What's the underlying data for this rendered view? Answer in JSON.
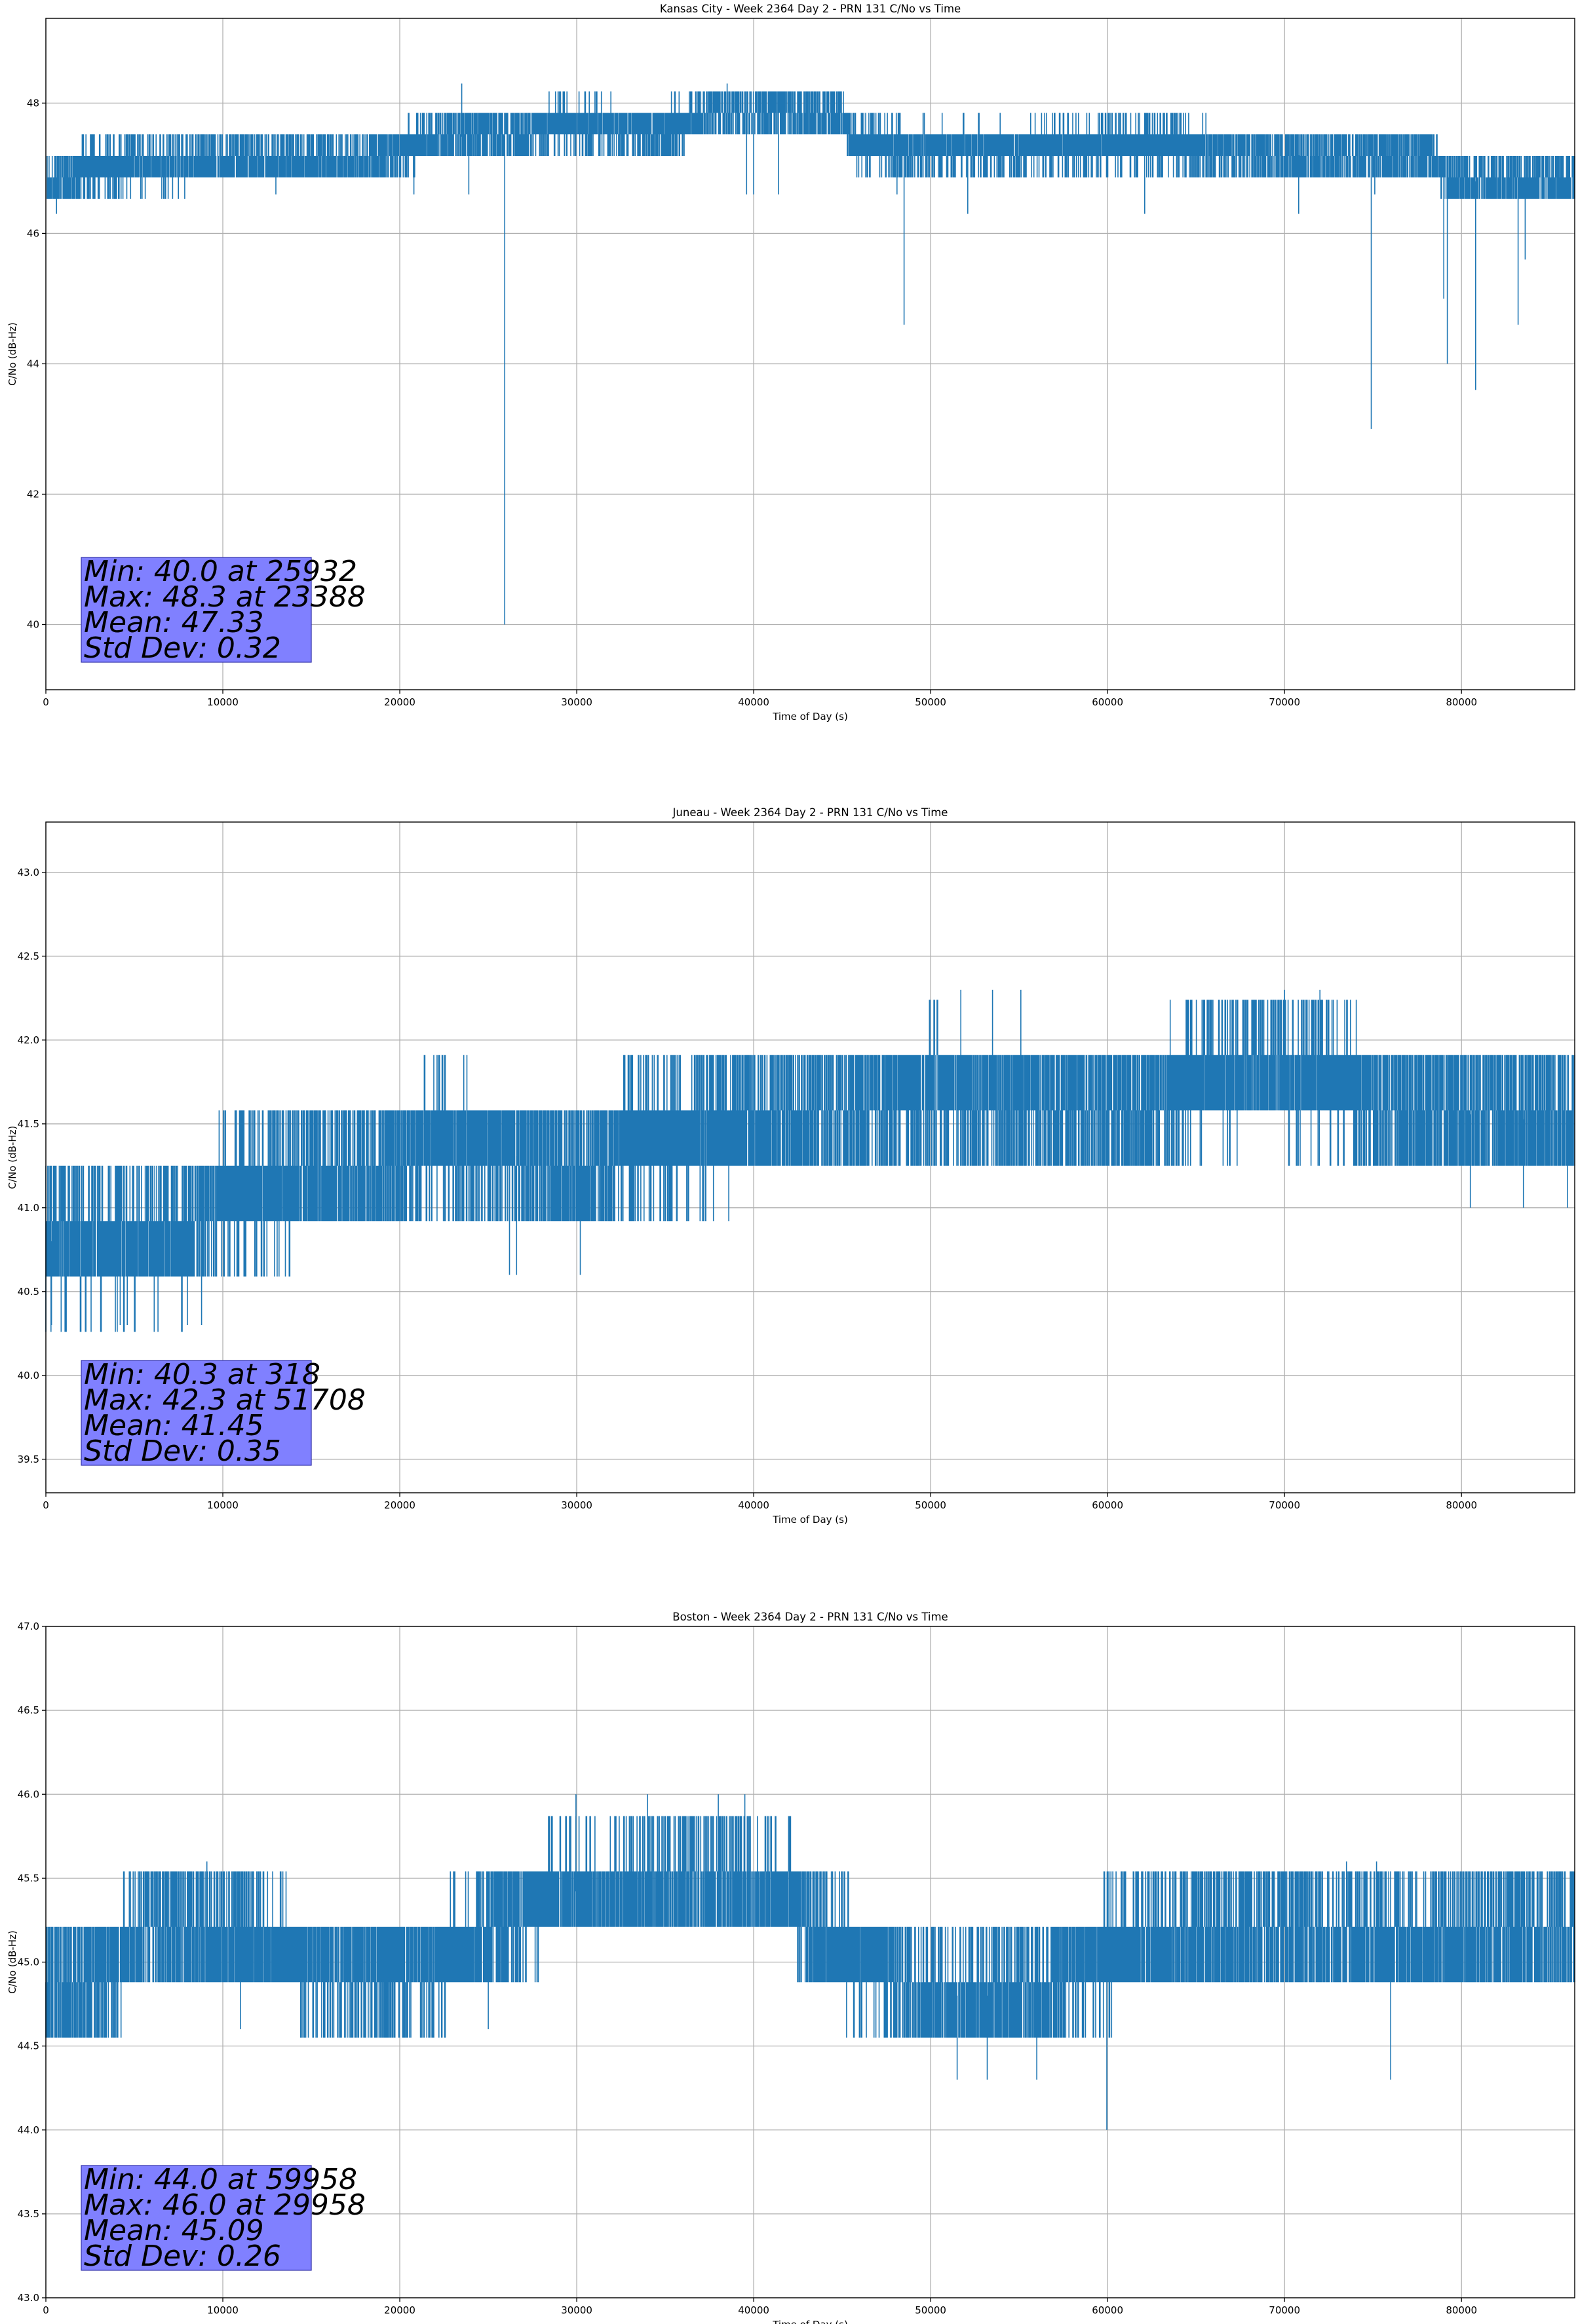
{
  "colors": {
    "series": "#1f77b4",
    "stats_box": "#8080ff",
    "stats_box_edge": "#3333aa",
    "grid": "#b0b0b0"
  },
  "chart_data": [
    {
      "type": "line",
      "title": "Kansas City - Week 2364 Day 2 - PRN 131 C/No vs Time",
      "xlabel": "Time of Day (s)",
      "ylabel": "C/No (dB-Hz)",
      "xlim": [
        0,
        86400
      ],
      "ylim": [
        39,
        49.3
      ],
      "xticks": [
        0,
        10000,
        20000,
        30000,
        40000,
        50000,
        60000,
        70000,
        80000
      ],
      "yticks": [
        40,
        42,
        44,
        46,
        48
      ],
      "ytick_labels": [
        "40",
        "42",
        "44",
        "46",
        "48"
      ],
      "grid": true,
      "series": [
        {
          "name": "C/No",
          "quantization": 0.33,
          "trend": [
            [
              0,
              46.8
            ],
            [
              1500,
              46.8
            ],
            [
              2000,
              47.0
            ],
            [
              9000,
              47.1
            ],
            [
              16000,
              47.1
            ],
            [
              19000,
              47.2
            ],
            [
              21000,
              47.4
            ],
            [
              24000,
              47.5
            ],
            [
              27000,
              47.5
            ],
            [
              29000,
              47.7
            ],
            [
              33000,
              47.6
            ],
            [
              35000,
              47.6
            ],
            [
              37000,
              47.8
            ],
            [
              40000,
              47.9
            ],
            [
              45000,
              47.8
            ],
            [
              45500,
              47.4
            ],
            [
              49000,
              47.3
            ],
            [
              55000,
              47.3
            ],
            [
              62000,
              47.4
            ],
            [
              66000,
              47.3
            ],
            [
              70000,
              47.2
            ],
            [
              78000,
              47.2
            ],
            [
              79500,
              46.8
            ],
            [
              86400,
              46.8
            ]
          ],
          "noise": 0.4,
          "dropouts": [
            [
              25932,
              40.0
            ],
            [
              48500,
              44.6
            ],
            [
              74900,
              43.0
            ],
            [
              79200,
              44.0
            ],
            [
              80800,
              43.6
            ],
            [
              83200,
              44.6
            ],
            [
              83600,
              45.6
            ],
            [
              23500,
              48.3
            ],
            [
              38500,
              48.3
            ],
            [
              13000,
              46.6
            ],
            [
              20800,
              46.6
            ],
            [
              23900,
              46.6
            ],
            [
              40000,
              46.6
            ],
            [
              41400,
              46.6
            ],
            [
              48100,
              46.6
            ],
            [
              52100,
              46.3
            ],
            [
              62100,
              46.3
            ],
            [
              70800,
              46.3
            ],
            [
              75100,
              46.6
            ],
            [
              79000,
              45.0
            ],
            [
              600,
              46.3
            ],
            [
              39600,
              46.6
            ]
          ]
        }
      ],
      "stats": {
        "line1": "Min: 40.0 at 25932",
        "line2": "Max: 48.3 at 23388",
        "line3": "Mean: 47.33",
        "line4": "Std Dev: 0.32"
      }
    },
    {
      "type": "line",
      "title": "Juneau - Week 2364 Day 2 - PRN 131 C/No vs Time",
      "xlabel": "Time of Day (s)",
      "ylabel": "C/No (dB-Hz)",
      "xlim": [
        0,
        86400
      ],
      "ylim": [
        39.3,
        43.3
      ],
      "xticks": [
        0,
        10000,
        20000,
        30000,
        40000,
        50000,
        60000,
        70000,
        80000
      ],
      "yticks": [
        39.5,
        40.0,
        40.5,
        41.0,
        41.5,
        42.0,
        42.5,
        43.0
      ],
      "ytick_labels": [
        "39.5",
        "40.0",
        "40.5",
        "41.0",
        "41.5",
        "42.0",
        "42.5",
        "43.0"
      ],
      "grid": true,
      "series": [
        {
          "name": "C/No",
          "quantization": 0.33,
          "trend": [
            [
              0,
              40.8
            ],
            [
              8000,
              40.8
            ],
            [
              10000,
              41.1
            ],
            [
              18000,
              41.2
            ],
            [
              22000,
              41.4
            ],
            [
              27000,
              41.3
            ],
            [
              30000,
              41.2
            ],
            [
              33000,
              41.4
            ],
            [
              41000,
              41.5
            ],
            [
              50000,
              41.7
            ],
            [
              56000,
              41.6
            ],
            [
              62000,
              41.6
            ],
            [
              66000,
              41.8
            ],
            [
              72000,
              41.8
            ],
            [
              76000,
              41.6
            ],
            [
              86400,
              41.5
            ]
          ],
          "noise": 0.4,
          "dropouts": [
            [
              318,
              40.3
            ],
            [
              4200,
              40.3
            ],
            [
              4600,
              40.3
            ],
            [
              8000,
              40.3
            ],
            [
              8800,
              40.3
            ],
            [
              26200,
              40.6
            ],
            [
              26600,
              40.6
            ],
            [
              30200,
              40.6
            ],
            [
              51708,
              42.3
            ],
            [
              53500,
              42.3
            ],
            [
              55100,
              42.3
            ],
            [
              70000,
              42.3
            ],
            [
              72000,
              42.3
            ],
            [
              80500,
              41.0
            ],
            [
              83500,
              41.0
            ],
            [
              86000,
              41.0
            ]
          ]
        }
      ],
      "stats": {
        "line1": "Min: 40.3 at 318",
        "line2": "Max: 42.3 at 51708",
        "line3": "Mean: 41.45",
        "line4": "Std Dev: 0.35"
      }
    },
    {
      "type": "line",
      "title": "Boston - Week 2364 Day 2 - PRN 131 C/No vs Time",
      "xlabel": "Time of Day (s)",
      "ylabel": "C/No (dB-Hz)",
      "xlim": [
        0,
        86400
      ],
      "ylim": [
        43.0,
        47.0
      ],
      "xticks": [
        0,
        10000,
        20000,
        30000,
        40000,
        50000,
        60000,
        70000,
        80000
      ],
      "yticks": [
        43.0,
        43.5,
        44.0,
        44.5,
        45.0,
        45.5,
        46.0,
        46.5,
        47.0
      ],
      "ytick_labels": [
        "43.0",
        "43.5",
        "44.0",
        "44.5",
        "45.0",
        "45.5",
        "46.0",
        "46.5",
        "47.0"
      ],
      "grid": true,
      "series": [
        {
          "name": "C/No",
          "quantization": 0.33,
          "trend": [
            [
              0,
              44.8
            ],
            [
              3000,
              44.9
            ],
            [
              6000,
              45.2
            ],
            [
              12000,
              45.1
            ],
            [
              18000,
              44.9
            ],
            [
              22000,
              45.0
            ],
            [
              26000,
              45.2
            ],
            [
              28000,
              45.4
            ],
            [
              37000,
              45.5
            ],
            [
              42000,
              45.4
            ],
            [
              44000,
              45.1
            ],
            [
              47000,
              45.0
            ],
            [
              50000,
              44.8
            ],
            [
              56000,
              44.8
            ],
            [
              58000,
              45.0
            ],
            [
              62000,
              45.1
            ],
            [
              70000,
              45.2
            ],
            [
              78000,
              45.1
            ],
            [
              86400,
              45.2
            ]
          ],
          "noise": 0.35,
          "dropouts": [
            [
              59958,
              44.0
            ],
            [
              29958,
              46.0
            ],
            [
              9100,
              45.6
            ],
            [
              76000,
              44.3
            ],
            [
              73500,
              45.6
            ],
            [
              75200,
              45.6
            ],
            [
              34000,
              46.0
            ],
            [
              38000,
              46.0
            ],
            [
              39500,
              46.0
            ],
            [
              51500,
              44.3
            ],
            [
              53200,
              44.3
            ],
            [
              56000,
              44.3
            ],
            [
              1000,
              44.6
            ],
            [
              11000,
              44.6
            ],
            [
              25000,
              44.6
            ]
          ]
        }
      ],
      "stats": {
        "line1": "Min: 44.0 at 59958",
        "line2": "Max: 46.0 at 29958",
        "line3": "Mean: 45.09",
        "line4": "Std Dev: 0.26"
      }
    }
  ]
}
